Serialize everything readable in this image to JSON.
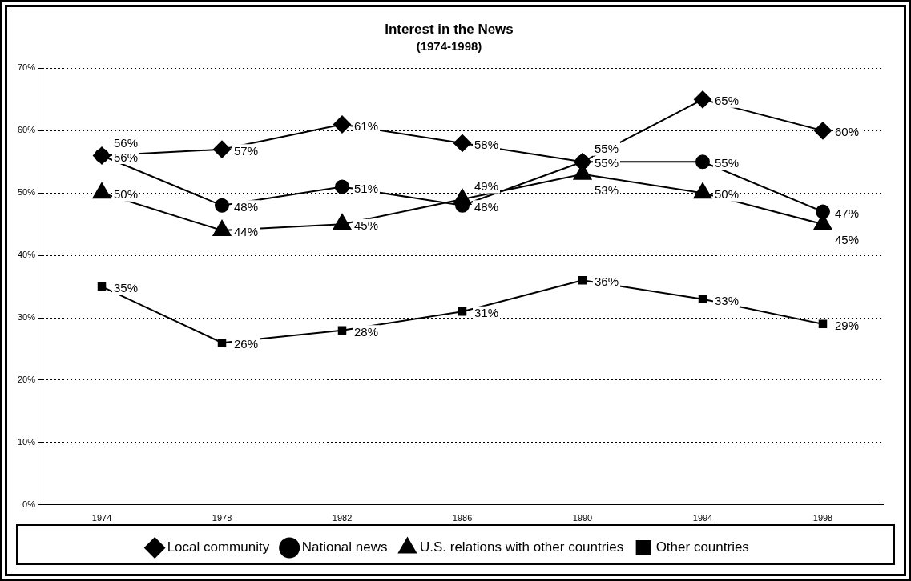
{
  "chart_data": {
    "type": "line",
    "title": "Interest in the News",
    "subtitle": "(1974-1998)",
    "categories": [
      "1974",
      "1978",
      "1982",
      "1986",
      "1990",
      "1994",
      "1998"
    ],
    "series": [
      {
        "name": "Local community",
        "color": "#000000",
        "marker": "diamond",
        "values": [
          56,
          57,
          61,
          58,
          55,
          65,
          60
        ],
        "value_labels": [
          "56%",
          "57%",
          "61%",
          "58%",
          "55%",
          "65%",
          "60%"
        ]
      },
      {
        "name": "National news",
        "color": "#000000",
        "marker": "circle",
        "values": [
          56,
          48,
          51,
          48,
          55,
          55,
          47
        ],
        "value_labels": [
          "56%",
          "48%",
          "51%",
          "48%",
          "55%",
          "55%",
          "47%"
        ]
      },
      {
        "name": "U.S. relations with other countries",
        "color": "#000000",
        "marker": "triangle",
        "values": [
          50,
          44,
          45,
          49,
          53,
          50,
          45
        ],
        "value_labels": [
          "50%",
          "44%",
          "45%",
          "49%",
          "53%",
          "50%",
          "45%"
        ]
      },
      {
        "name": "Other countries",
        "color": "#000000",
        "marker": "square",
        "values": [
          35,
          26,
          28,
          31,
          36,
          33,
          29
        ],
        "value_labels": [
          "35%",
          "26%",
          "28%",
          "31%",
          "36%",
          "33%",
          "29%"
        ]
      }
    ],
    "ylim": [
      0,
      70
    ],
    "yticks": [
      {
        "value": 0,
        "label": "0%"
      },
      {
        "value": 10,
        "label": "10%"
      },
      {
        "value": 20,
        "label": "20%"
      },
      {
        "value": 30,
        "label": "30%"
      },
      {
        "value": 40,
        "label": "40%"
      },
      {
        "value": 50,
        "label": "50%"
      },
      {
        "value": 60,
        "label": "60%"
      },
      {
        "value": 70,
        "label": "70%"
      }
    ],
    "grid": "y",
    "legend": "bottom",
    "line_style": "solid"
  }
}
